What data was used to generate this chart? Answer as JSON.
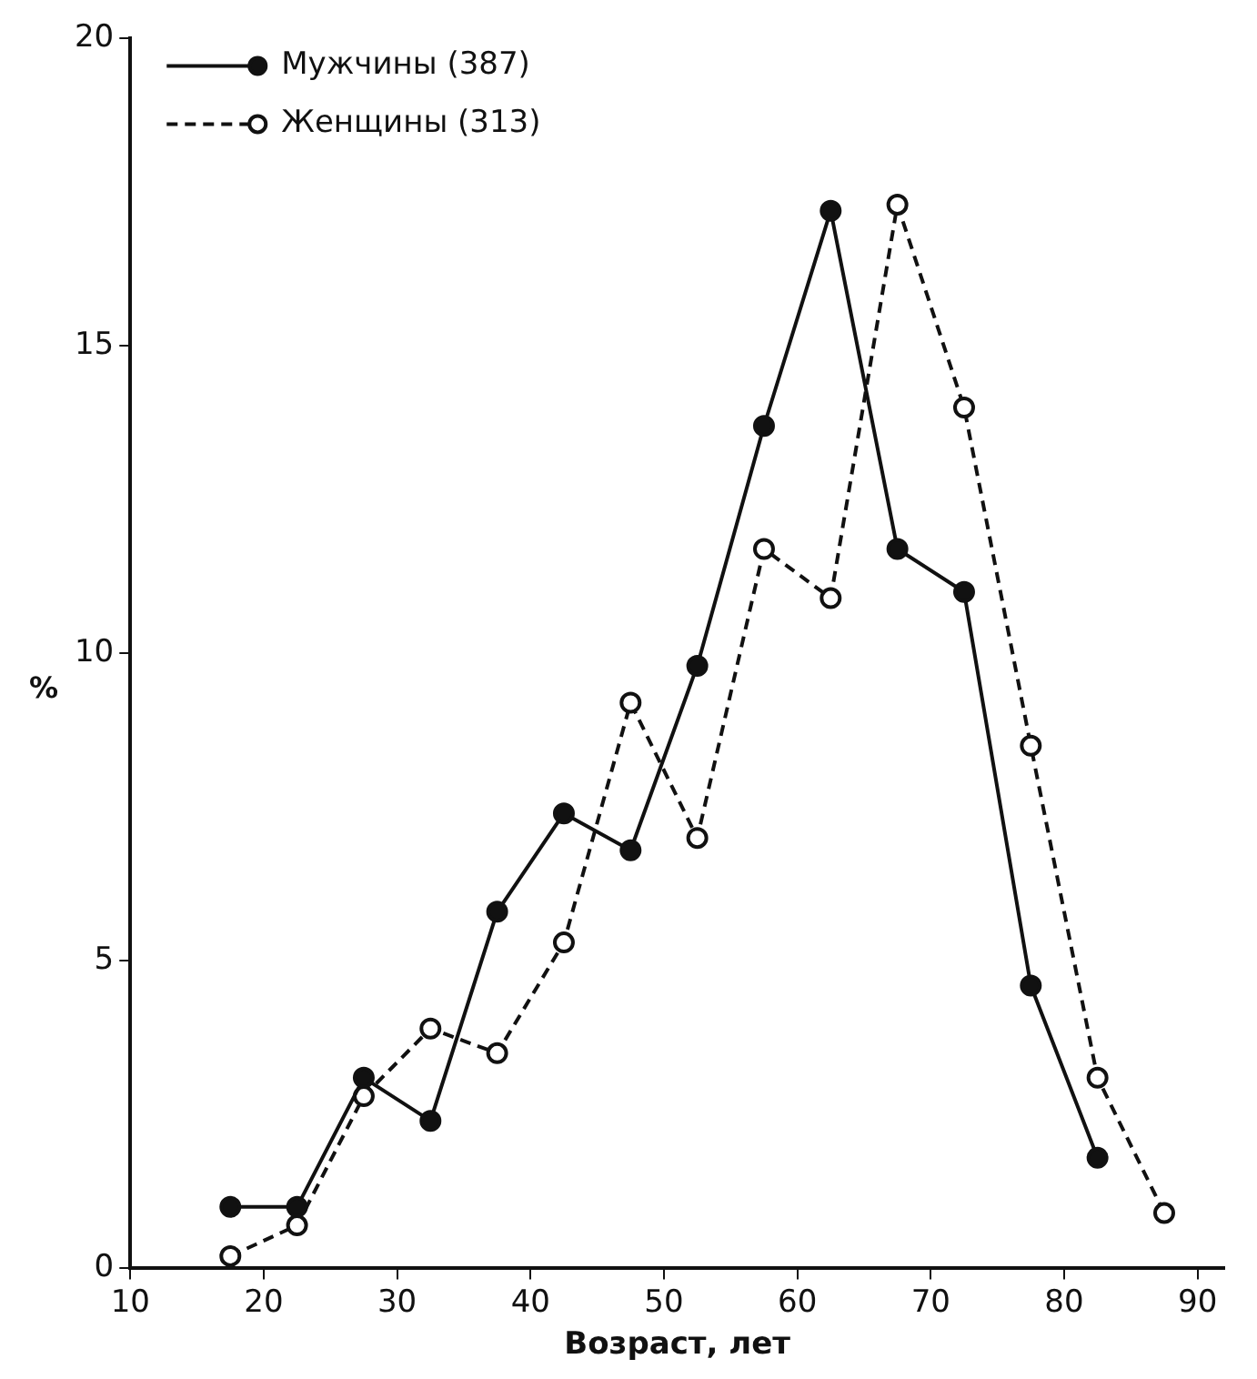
{
  "chart_data": {
    "type": "line",
    "xlabel": "Возраст, лет",
    "ylabel": "%",
    "xlim": [
      10,
      92
    ],
    "xticks": [
      10,
      20,
      30,
      40,
      50,
      60,
      70,
      80,
      90
    ],
    "ylim": [
      0,
      20
    ],
    "yticks": [
      0,
      5,
      10,
      15,
      20
    ],
    "grid": false,
    "legend": "top left",
    "marker": "circle",
    "series": [
      {
        "name": "Мужчины (387)",
        "color": "#111111",
        "line_style": "solid",
        "x": [
          17.5,
          22.5,
          27.5,
          32.5,
          37.5,
          42.5,
          47.5,
          52.5,
          57.5,
          62.5,
          67.5,
          72.5,
          77.5,
          82.5
        ],
        "values": [
          1.0,
          1.0,
          3.1,
          2.4,
          5.8,
          7.4,
          6.8,
          9.8,
          13.7,
          17.2,
          11.7,
          11.0,
          4.6,
          1.8
        ]
      },
      {
        "name": "Женщины (313)",
        "color": "#111111",
        "line_style": "dashed",
        "x": [
          17.5,
          22.5,
          27.5,
          32.5,
          37.5,
          42.5,
          47.5,
          52.5,
          57.5,
          62.5,
          67.5,
          72.5,
          77.5,
          82.5,
          87.5
        ],
        "values": [
          0.2,
          0.7,
          2.8,
          3.9,
          3.5,
          5.3,
          9.2,
          7.0,
          11.7,
          10.9,
          17.3,
          14.0,
          8.5,
          3.1,
          0.9
        ]
      }
    ]
  }
}
